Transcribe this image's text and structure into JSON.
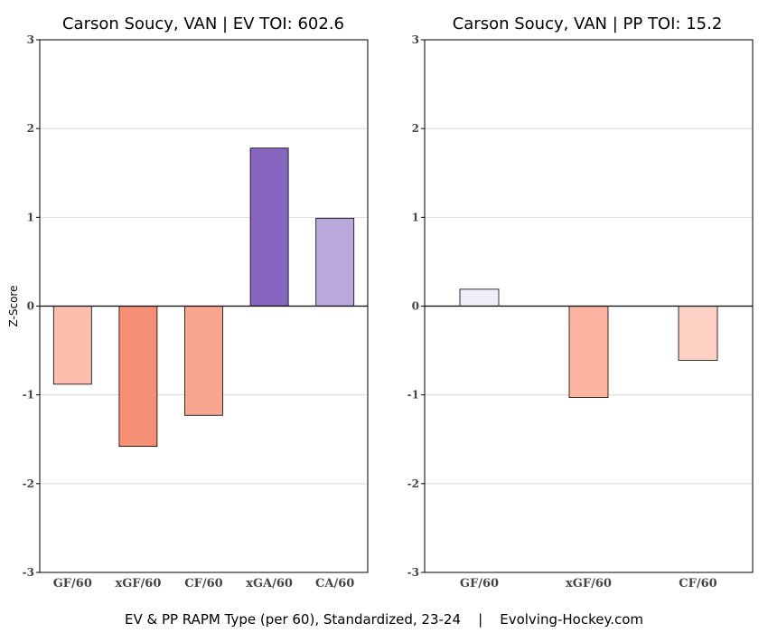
{
  "chart_data": [
    {
      "type": "bar",
      "title": "Carson Soucy, VAN  |  EV TOI: 602.6",
      "ylabel": "Z-Score",
      "xlabel": "",
      "ylim": [
        -3,
        3
      ],
      "yticks": [
        -3,
        -2,
        -1,
        0,
        1,
        2,
        3
      ],
      "grid": true,
      "categories": [
        "GF/60",
        "xGF/60",
        "CF/60",
        "xGA/60",
        "CA/60"
      ],
      "values": [
        -0.88,
        -1.58,
        -1.23,
        1.78,
        0.99
      ],
      "colors": [
        "#fcbfad",
        "#f58f76",
        "#f9a68e",
        "#8766bf",
        "#b9a9db"
      ]
    },
    {
      "type": "bar",
      "title": "Carson Soucy, VAN  |  PP TOI: 15.2",
      "ylabel": "",
      "xlabel": "",
      "ylim": [
        -3,
        3
      ],
      "yticks": [
        -3,
        -2,
        -1,
        0,
        1,
        2,
        3
      ],
      "grid": true,
      "categories": [
        "GF/60",
        "xGF/60",
        "CF/60"
      ],
      "values": [
        0.19,
        -1.03,
        -0.61
      ],
      "colors": [
        "#efedf5",
        "#fcb5a1",
        "#fdd2c5"
      ]
    }
  ],
  "caption": "EV & PP RAPM Type (per 60), Standardized, 23-24    |    Evolving-Hockey.com"
}
